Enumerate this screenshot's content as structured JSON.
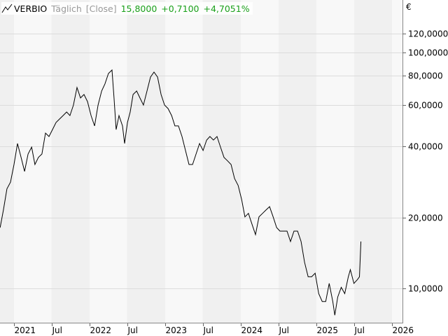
{
  "header": {
    "icon": "line-chart-icon",
    "name": "VERBIO",
    "interval": "Täglich",
    "mode": "[Close]",
    "last": "15,8000",
    "change": "+0,7100",
    "change_pct": "+4,7051%"
  },
  "colors": {
    "positive": "#1aa01a",
    "line": "#000000",
    "band_dark": "#f0f0f0",
    "band_light": "#f8f8f8",
    "grid": "#dcdcdc"
  },
  "chart_data": {
    "type": "line",
    "title": "VERBIO",
    "currency_label": "€",
    "y_scale": "log",
    "ylim": [
      7,
      140
    ],
    "grid": true,
    "y_ticks": [
      10,
      20,
      40,
      60,
      80,
      100,
      120
    ],
    "y_tick_labels": [
      "10,0000",
      "20,0000",
      "40,0000",
      "60,0000",
      "80,0000",
      "100,0000",
      "120,0000"
    ],
    "x_ticks": [
      "2021-01-01",
      "2021-07-01",
      "2022-01-01",
      "2022-07-01",
      "2023-01-01",
      "2023-07-01",
      "2024-01-01",
      "2024-07-01",
      "2025-01-01",
      "2025-07-01",
      "2026-01-01"
    ],
    "x_tick_labels": [
      "2021",
      "Jul",
      "2022",
      "Jul",
      "2023",
      "Jul",
      "2024",
      "Jul",
      "2025",
      "Jul",
      "2026"
    ],
    "xlim": [
      "2020-10-26",
      "2026-04-01"
    ],
    "series": [
      {
        "points": [
          [
            "2020-10-26",
            18.1
          ],
          [
            "2020-11-11",
            21.5
          ],
          [
            "2020-11-28",
            26.4
          ],
          [
            "2020-12-15",
            28.2
          ],
          [
            "2021-01-01",
            33.5
          ],
          [
            "2021-01-18",
            41.1
          ],
          [
            "2021-02-04",
            35.9
          ],
          [
            "2021-02-21",
            31.3
          ],
          [
            "2021-03-10",
            37.1
          ],
          [
            "2021-03-27",
            39.7
          ],
          [
            "2021-04-12",
            33.5
          ],
          [
            "2021-04-29",
            35.9
          ],
          [
            "2021-05-16",
            37.1
          ],
          [
            "2021-06-02",
            45.5
          ],
          [
            "2021-06-19",
            44.0
          ],
          [
            "2021-07-06",
            47.1
          ],
          [
            "2021-07-23",
            50.5
          ],
          [
            "2021-08-09",
            52.2
          ],
          [
            "2021-08-26",
            54.0
          ],
          [
            "2021-09-12",
            55.9
          ],
          [
            "2021-09-28",
            54.0
          ],
          [
            "2021-10-15",
            59.8
          ],
          [
            "2021-11-01",
            71.0
          ],
          [
            "2021-11-18",
            64.1
          ],
          [
            "2021-12-05",
            66.3
          ],
          [
            "2021-12-22",
            61.9
          ],
          [
            "2022-01-08",
            54.0
          ],
          [
            "2022-01-25",
            48.8
          ],
          [
            "2022-02-11",
            59.8
          ],
          [
            "2022-02-28",
            68.6
          ],
          [
            "2022-03-16",
            73.5
          ],
          [
            "2022-04-02",
            81.4
          ],
          [
            "2022-04-19",
            84.2
          ],
          [
            "2022-04-29",
            64.1
          ],
          [
            "2022-05-09",
            47.1
          ],
          [
            "2022-05-23",
            54.0
          ],
          [
            "2022-06-09",
            48.8
          ],
          [
            "2022-06-19",
            41.1
          ],
          [
            "2022-07-03",
            50.5
          ],
          [
            "2022-07-16",
            55.9
          ],
          [
            "2022-07-30",
            66.3
          ],
          [
            "2022-08-16",
            68.6
          ],
          [
            "2022-09-01",
            64.1
          ],
          [
            "2022-09-18",
            59.8
          ],
          [
            "2022-10-05",
            68.6
          ],
          [
            "2022-10-22",
            78.6
          ],
          [
            "2022-11-08",
            82.5
          ],
          [
            "2022-11-25",
            78.6
          ],
          [
            "2022-12-12",
            66.3
          ],
          [
            "2022-12-29",
            59.8
          ],
          [
            "2023-01-15",
            57.8
          ],
          [
            "2023-02-01",
            54.0
          ],
          [
            "2023-02-17",
            48.8
          ],
          [
            "2023-03-06",
            48.8
          ],
          [
            "2023-03-23",
            44.0
          ],
          [
            "2023-04-09",
            38.4
          ],
          [
            "2023-04-26",
            33.5
          ],
          [
            "2023-05-13",
            33.5
          ],
          [
            "2023-05-30",
            37.1
          ],
          [
            "2023-06-16",
            41.1
          ],
          [
            "2023-07-03",
            38.4
          ],
          [
            "2023-07-20",
            42.5
          ],
          [
            "2023-08-05",
            44.0
          ],
          [
            "2023-08-22",
            42.5
          ],
          [
            "2023-09-08",
            44.0
          ],
          [
            "2023-09-25",
            39.7
          ],
          [
            "2023-10-12",
            35.9
          ],
          [
            "2023-10-29",
            34.7
          ],
          [
            "2023-11-15",
            33.5
          ],
          [
            "2023-12-02",
            29.2
          ],
          [
            "2023-12-19",
            27.3
          ],
          [
            "2024-01-05",
            23.8
          ],
          [
            "2024-01-21",
            20.1
          ],
          [
            "2024-02-07",
            20.8
          ],
          [
            "2024-02-24",
            18.7
          ],
          [
            "2024-03-12",
            16.9
          ],
          [
            "2024-03-29",
            20.1
          ],
          [
            "2024-04-15",
            20.8
          ],
          [
            "2024-05-02",
            21.5
          ],
          [
            "2024-05-19",
            22.2
          ],
          [
            "2024-06-05",
            20.1
          ],
          [
            "2024-06-22",
            18.1
          ],
          [
            "2024-07-08",
            17.5
          ],
          [
            "2024-07-25",
            17.5
          ],
          [
            "2024-08-11",
            17.5
          ],
          [
            "2024-08-28",
            15.8
          ],
          [
            "2024-09-14",
            17.5
          ],
          [
            "2024-10-01",
            17.5
          ],
          [
            "2024-10-18",
            15.8
          ],
          [
            "2024-11-04",
            12.9
          ],
          [
            "2024-11-21",
            11.2
          ],
          [
            "2024-12-08",
            11.2
          ],
          [
            "2024-12-25",
            11.6
          ],
          [
            "2025-01-11",
            9.5
          ],
          [
            "2025-01-28",
            8.8
          ],
          [
            "2025-02-14",
            8.8
          ],
          [
            "2025-03-03",
            10.5
          ],
          [
            "2025-03-20",
            8.8
          ],
          [
            "2025-03-30",
            7.7
          ],
          [
            "2025-04-13",
            9.2
          ],
          [
            "2025-04-30",
            10.1
          ],
          [
            "2025-05-17",
            9.5
          ],
          [
            "2025-06-03",
            11.2
          ],
          [
            "2025-06-13",
            12.0
          ],
          [
            "2025-06-30",
            10.5
          ],
          [
            "2025-07-17",
            10.9
          ],
          [
            "2025-07-27",
            11.2
          ],
          [
            "2025-08-03",
            15.8
          ]
        ]
      }
    ]
  }
}
